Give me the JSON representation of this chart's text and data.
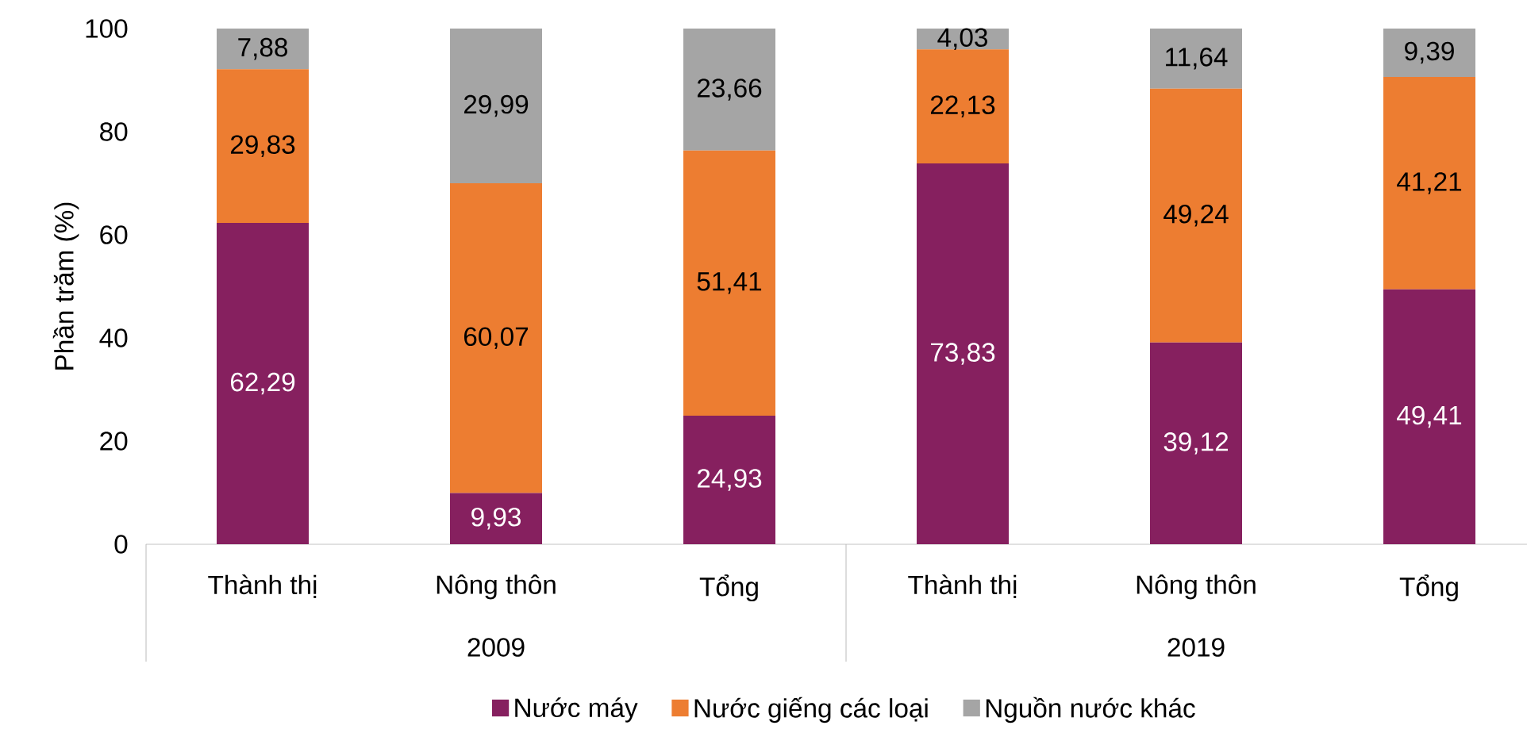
{
  "chart_data": {
    "type": "bar",
    "stacked": true,
    "ylabel": "Phần trăm (%)",
    "categories": [
      "Thành thị",
      "Nông thôn",
      "Tổng",
      "Thành thị",
      "Nông thôn",
      "Tổng"
    ],
    "annotations": [
      "2009",
      "2019"
    ],
    "series": [
      {
        "name": "Nước máy",
        "color": "#86205f",
        "values": [
          62.29,
          9.93,
          24.93,
          73.83,
          39.12,
          49.41
        ],
        "value_labels": [
          "62,29",
          "9,93",
          "24,93",
          "73,83",
          "39,12",
          "49,41"
        ]
      },
      {
        "name": "Nước giếng các loại",
        "color": "#ed7d31",
        "values": [
          29.83,
          60.07,
          51.41,
          22.13,
          49.24,
          41.21
        ],
        "value_labels": [
          "29,83",
          "60,07",
          "51,41",
          "22,13",
          "49,24",
          "41,21"
        ]
      },
      {
        "name": "Nguồn nước khác",
        "color": "#a5a5a5",
        "values": [
          7.88,
          29.99,
          23.66,
          4.03,
          11.64,
          9.39
        ],
        "value_labels": [
          "7,88",
          "29,99",
          "23,66",
          "4,03",
          "11,64",
          "9,39"
        ]
      }
    ],
    "ylim": [
      0,
      100
    ],
    "yticks": [
      0,
      20,
      40,
      60,
      80,
      100
    ],
    "legend": "bottom",
    "grid": false
  }
}
